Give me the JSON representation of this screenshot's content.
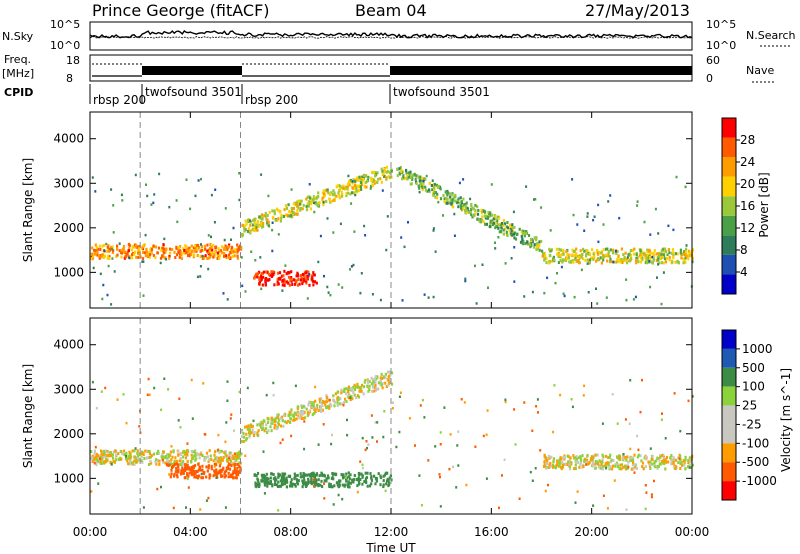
{
  "header": {
    "station": "Prince George (fitACF)",
    "beam": "Beam 04",
    "date": "27/May/2013"
  },
  "panels": {
    "nsky": {
      "label": "N.Sky",
      "left_ticks": [
        "10^5",
        "10^0"
      ],
      "right_ticks": [
        "10^5",
        "10^0"
      ],
      "right_label": "N.Search"
    },
    "freq": {
      "label_line1": "Freq.",
      "label_line2": "[MHz]",
      "left_ticks": [
        "18",
        "8"
      ],
      "right_ticks": [
        "60",
        "0"
      ],
      "right_label": "Nave"
    },
    "cpid": {
      "label": "CPID",
      "segments": [
        "rbsp 200",
        "twofsound 3501",
        "rbsp 200",
        "twofsound 3501"
      ]
    }
  },
  "time_axis": {
    "label": "Time UT",
    "ticks": [
      "00:00",
      "04:00",
      "08:00",
      "12:00",
      "16:00",
      "20:00",
      "00:00"
    ]
  },
  "colors": {
    "power_scale": [
      "#0000c8",
      "#1e50b4",
      "#2e7d5a",
      "#4aa046",
      "#9ac83a",
      "#ffd000",
      "#ff9c00",
      "#ff5a00",
      "#ff0000"
    ],
    "velocity_scale": [
      "#ff0000",
      "#ff5a00",
      "#ff9c00",
      "#c8c8c0",
      "#c8c8c0",
      "#8cd23c",
      "#3c8c46",
      "#1e5ab4",
      "#0000c8"
    ]
  },
  "chart_data": [
    {
      "type": "heatmap",
      "title": "",
      "xlabel": "",
      "ylabel": "Slant Range [km]",
      "x_range_hours": [
        0,
        24
      ],
      "y_range_km": [
        200,
        4600
      ],
      "y_ticks": [
        "1000",
        "2000",
        "3000",
        "4000"
      ],
      "colorbar": {
        "label": "Power [dB]",
        "ticks": [
          "4",
          "8",
          "12",
          "16",
          "20",
          "24",
          "28"
        ],
        "range": [
          0,
          32
        ]
      },
      "cpid_change_hours": [
        2,
        6,
        12
      ],
      "scatter_features": [
        {
          "t_start": 0,
          "t_end": 6,
          "range_km": 1500,
          "power_db": 24
        },
        {
          "t_start": 6.5,
          "t_end": 9,
          "range_km": 900,
          "power_db": 30
        },
        {
          "t_start": 6,
          "t_end": 12,
          "range_km_start": 2000,
          "range_km_end": 3300,
          "power_db": 18
        },
        {
          "t_start": 12.2,
          "t_end": 18,
          "range_km_start": 3300,
          "range_km_end": 1600,
          "power_db": 14
        },
        {
          "t_start": 18,
          "t_end": 24,
          "range_km": 1400,
          "power_db": 18
        }
      ]
    },
    {
      "type": "heatmap",
      "title": "",
      "xlabel": "Time UT",
      "ylabel": "Slant Range [km]",
      "x_range_hours": [
        0,
        24
      ],
      "y_range_km": [
        200,
        4600
      ],
      "y_ticks": [
        "1000",
        "2000",
        "3000",
        "4000"
      ],
      "colorbar": {
        "label": "Velocity [m s^-1]",
        "ticks": [
          "1000",
          "500",
          "100",
          "25",
          "-25",
          "-100",
          "-500",
          "-1000"
        ]
      },
      "cpid_change_hours": [
        2,
        6,
        12
      ],
      "scatter_features": [
        {
          "t_start": 0,
          "t_end": 6,
          "range_km": 1500,
          "velocity": 0
        },
        {
          "t_start": 3,
          "t_end": 6,
          "range_km": 1200,
          "velocity": -400
        },
        {
          "t_start": 6.5,
          "t_end": 12,
          "range_km": 1000,
          "velocity": 250
        },
        {
          "t_start": 6,
          "t_end": 12,
          "range_km_start": 2000,
          "range_km_end": 3300,
          "velocity": 0
        },
        {
          "t_start": 18,
          "t_end": 24,
          "range_km": 1400,
          "velocity": 0
        }
      ]
    }
  ]
}
